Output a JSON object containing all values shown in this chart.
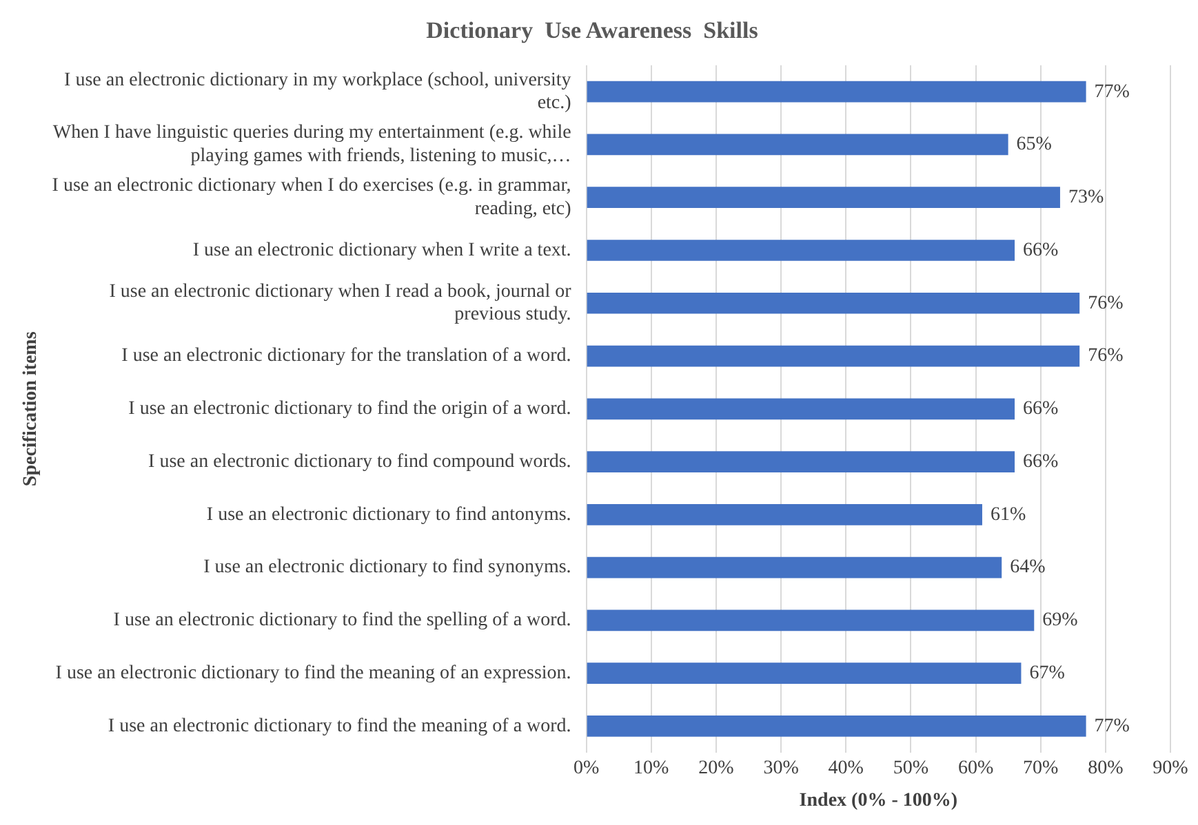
{
  "chart_data": {
    "type": "bar",
    "orientation": "horizontal",
    "title": "Dictionary  Use Awareness  Skills",
    "xlabel": "Index (0% - 100%)",
    "ylabel": "Specification items",
    "categories": [
      "I use an electronic dictionary in my workplace (school, university etc.)",
      "When I have linguistic queries during my entertainment (e.g. while playing games with friends, listening to music,…",
      "I use an electronic dictionary when I do exercises (e.g. in grammar, reading, etc)",
      "I use an electronic dictionary when I write a text.",
      "I use an electronic dictionary when I read a book, journal or previous study.",
      "I use an electronic dictionary for the translation of a word.",
      "I use an electronic dictionary to find the origin of a word.",
      "I use an electronic dictionary to find compound words.",
      "I use an electronic dictionary to find antonyms.",
      "I use an electronic dictionary to find synonyms.",
      "I use an electronic dictionary to find the spelling of a word.",
      "I use an electronic dictionary to find the meaning of an expression.",
      "I use an electronic dictionary to find the meaning of a word."
    ],
    "values": [
      77,
      65,
      73,
      66,
      76,
      76,
      66,
      66,
      61,
      64,
      69,
      67,
      77
    ],
    "value_labels": [
      "77%",
      "65%",
      "73%",
      "66%",
      "76%",
      "76%",
      "66%",
      "66%",
      "61%",
      "64%",
      "69%",
      "67%",
      "77%"
    ],
    "color": "#4472c4",
    "xlim": [
      0,
      90
    ],
    "xticks": [
      {
        "value": 0,
        "label": "0%"
      },
      {
        "value": 10,
        "label": "10%"
      },
      {
        "value": 20,
        "label": "20%"
      },
      {
        "value": 30,
        "label": "30%"
      },
      {
        "value": 40,
        "label": "40%"
      },
      {
        "value": 50,
        "label": "50%"
      },
      {
        "value": 60,
        "label": "60%"
      },
      {
        "value": 70,
        "label": "70%"
      },
      {
        "value": 80,
        "label": "80%"
      },
      {
        "value": 90,
        "label": "90%"
      }
    ],
    "grid": "x",
    "legend": false
  }
}
